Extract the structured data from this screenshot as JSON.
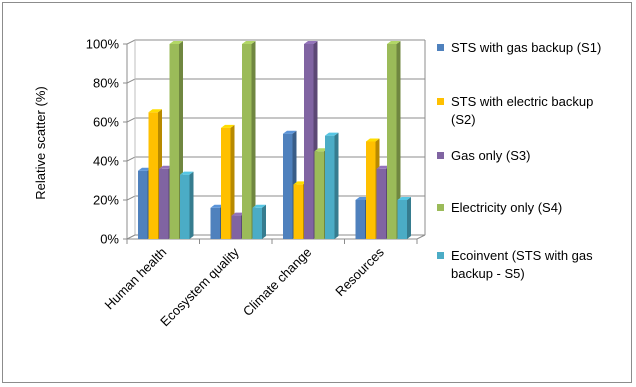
{
  "chart_data": {
    "type": "bar",
    "title": "",
    "xlabel": "",
    "ylabel": "Relative scatter (%)",
    "ylim": [
      0,
      100
    ],
    "yticks": [
      "0%",
      "20%",
      "40%",
      "60%",
      "80%",
      "100%"
    ],
    "grid": true,
    "legend_position": "right",
    "categories": [
      "Human health",
      "Ecosystem quality",
      "Climate change",
      "Resources"
    ],
    "series": [
      {
        "name": "STS with gas backup (S1)",
        "color": "#4f81bd",
        "values": [
          35,
          16,
          54,
          20
        ]
      },
      {
        "name": "STS with electric backup (S2)",
        "color": "#ffc000",
        "values": [
          65,
          57,
          28,
          50
        ]
      },
      {
        "name": "Gas only (S3)",
        "color": "#8064a2",
        "values": [
          36,
          12,
          100,
          36
        ]
      },
      {
        "name": "Electricity only (S4)",
        "color": "#9bbb59",
        "values": [
          100,
          100,
          45,
          100
        ]
      },
      {
        "name": "Ecoinvent (STS with gas backup - S5)",
        "color": "#4bacc6",
        "values": [
          33,
          16,
          53,
          20
        ]
      }
    ]
  }
}
